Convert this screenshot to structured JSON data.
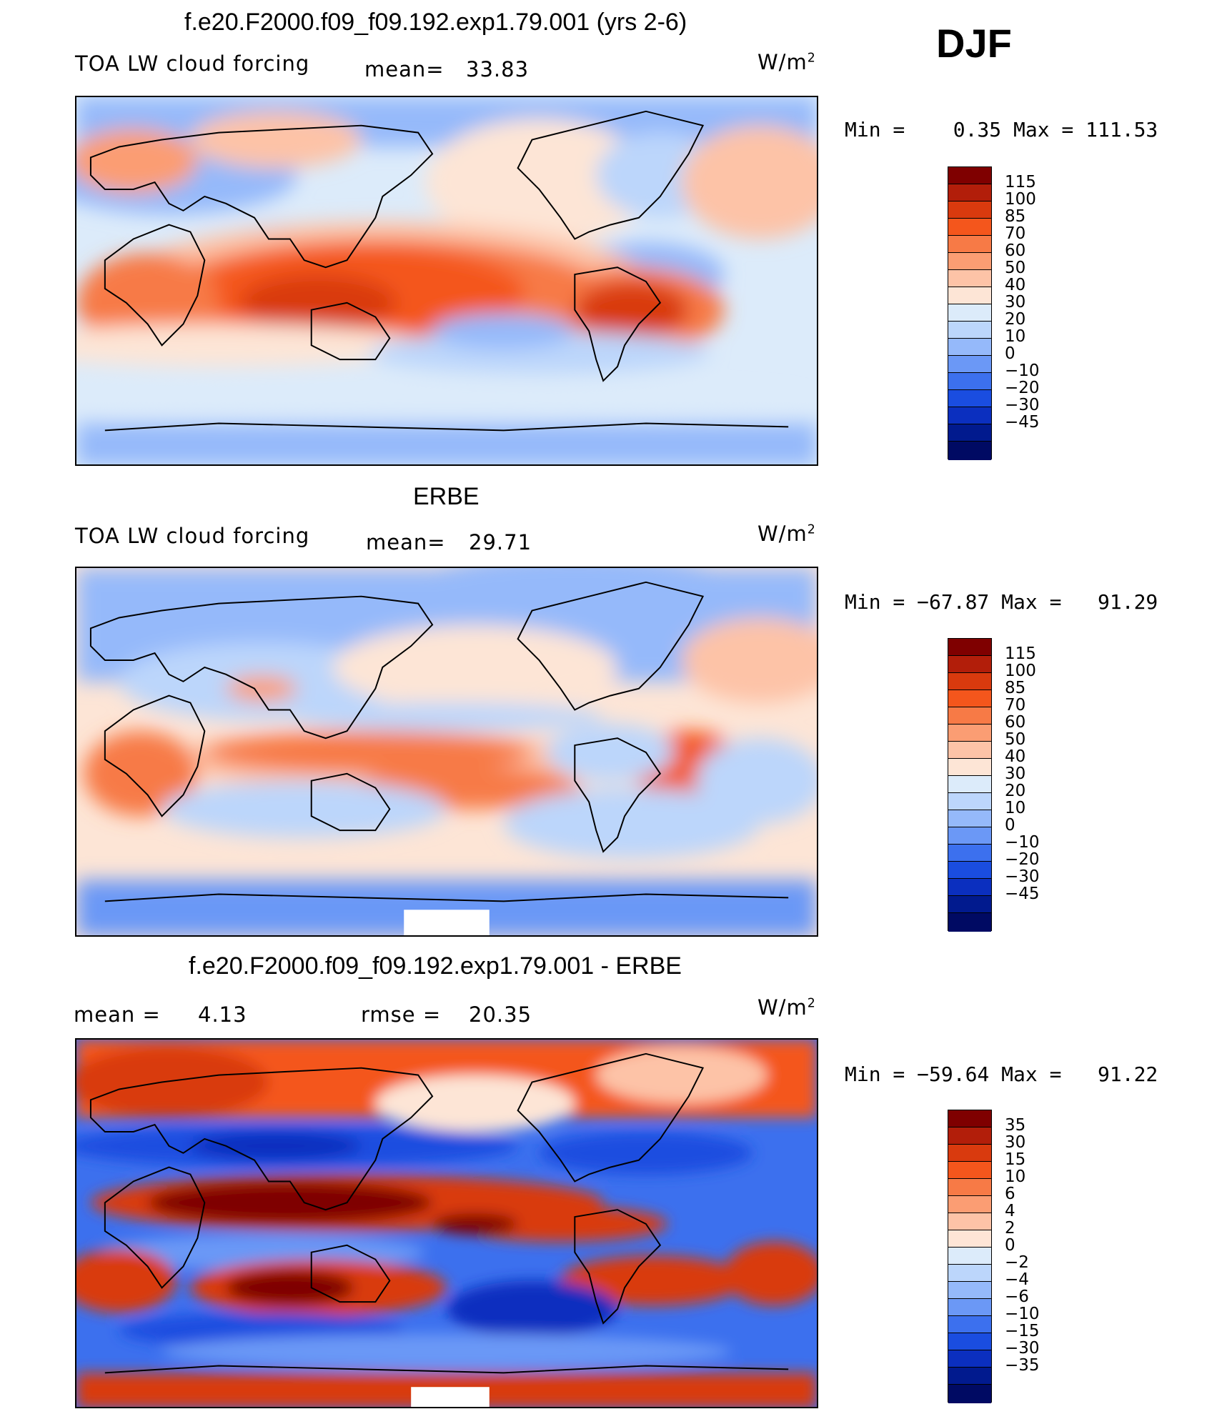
{
  "season": "DJF",
  "colors": {
    "abs_scale": [
      "#7f0000",
      "#b21e0a",
      "#d93a0e",
      "#f4561c",
      "#f77a46",
      "#fb9d73",
      "#fdc3a7",
      "#fde5d6",
      "#dcebfa",
      "#bcd6fb",
      "#95b9fa",
      "#6b98f6",
      "#3c70ee",
      "#1a4de0",
      "#0b2fbf",
      "#011a8e",
      "#000a63"
    ],
    "diff_scale": [
      "#7f0000",
      "#b21e0a",
      "#d93a0e",
      "#f4561c",
      "#f77a46",
      "#fb9d73",
      "#fdc3a7",
      "#fde5d6",
      "#dcebfa",
      "#bcd6fb",
      "#95b9fa",
      "#6b98f6",
      "#3c70ee",
      "#1a4de0",
      "#0b2fbf",
      "#011a8e",
      "#000a63"
    ]
  },
  "panels": [
    {
      "title": "f.e20.F2000.f09_f09.192.exp1.79.001 (yrs 2-6)",
      "left_label": "TOA LW cloud forcing",
      "stat_label": "mean=",
      "stat_value": "33.83",
      "units_base": "W/m",
      "units_exp": "2",
      "minmax": "Min =    0.35 Max = 111.53",
      "colorbar_ticks": [
        "115",
        "100",
        "85",
        "70",
        "60",
        "50",
        "40",
        "30",
        "20",
        "10",
        "0",
        "−10",
        "−20",
        "−30",
        "−45"
      ]
    },
    {
      "title": "ERBE",
      "left_label": "TOA LW cloud forcing",
      "stat_label": "mean=",
      "stat_value": "29.71",
      "units_base": "W/m",
      "units_exp": "2",
      "minmax": "Min = −67.87 Max =   91.29",
      "colorbar_ticks": [
        "115",
        "100",
        "85",
        "70",
        "60",
        "50",
        "40",
        "30",
        "20",
        "10",
        "0",
        "−10",
        "−20",
        "−30",
        "−45"
      ]
    },
    {
      "title": "f.e20.F2000.f09_f09.192.exp1.79.001 - ERBE",
      "left_label": "mean =",
      "left_value": "4.13",
      "stat_label": "rmse =",
      "stat_value": "20.35",
      "units_base": "W/m",
      "units_exp": "2",
      "minmax": "Min = −59.64 Max =   91.22",
      "colorbar_ticks": [
        "35",
        "30",
        "15",
        "10",
        "6",
        "4",
        "2",
        "0",
        "−2",
        "−4",
        "−6",
        "−10",
        "−15",
        "−30",
        "−35"
      ]
    }
  ]
}
